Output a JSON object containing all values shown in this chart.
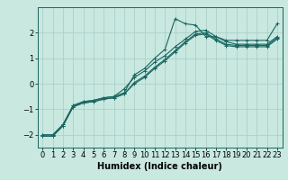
{
  "title": "",
  "xlabel": "Humidex (Indice chaleur)",
  "ylabel": "",
  "background_color": "#c8e8e0",
  "grid_color": "#a8ccc8",
  "line_color": "#1a6660",
  "x_values": [
    0,
    1,
    2,
    3,
    4,
    5,
    6,
    7,
    8,
    9,
    10,
    11,
    12,
    13,
    14,
    15,
    16,
    17,
    18,
    19,
    20,
    21,
    22,
    23
  ],
  "line1": [
    -2.0,
    -2.0,
    -1.6,
    -0.85,
    -0.7,
    -0.65,
    -0.55,
    -0.5,
    -0.35,
    0.35,
    0.6,
    1.0,
    1.35,
    2.55,
    2.35,
    2.3,
    1.85,
    1.85,
    1.7,
    1.7,
    1.7,
    1.7,
    1.7,
    2.35
  ],
  "line2": [
    -2.0,
    -2.0,
    -1.6,
    -0.85,
    -0.7,
    -0.65,
    -0.55,
    -0.5,
    -0.2,
    0.25,
    0.5,
    0.85,
    1.1,
    1.45,
    1.75,
    2.05,
    2.1,
    1.85,
    1.65,
    1.55,
    1.55,
    1.55,
    1.55,
    1.85
  ],
  "line3": [
    -2.05,
    -2.05,
    -1.65,
    -0.9,
    -0.75,
    -0.7,
    -0.6,
    -0.55,
    -0.4,
    0.05,
    0.3,
    0.65,
    0.95,
    1.3,
    1.65,
    1.95,
    2.0,
    1.75,
    1.55,
    1.5,
    1.5,
    1.5,
    1.5,
    1.8
  ],
  "line4": [
    -2.05,
    -2.05,
    -1.65,
    -0.9,
    -0.75,
    -0.7,
    -0.6,
    -0.55,
    -0.4,
    0.0,
    0.25,
    0.6,
    0.9,
    1.25,
    1.6,
    1.9,
    1.95,
    1.7,
    1.5,
    1.45,
    1.45,
    1.45,
    1.45,
    1.75
  ],
  "ylim": [
    -2.5,
    3.0
  ],
  "xlim": [
    -0.5,
    23.5
  ],
  "yticks": [
    -2,
    -1,
    0,
    1,
    2
  ],
  "xtick_labels": [
    "0",
    "1",
    "2",
    "3",
    "4",
    "5",
    "6",
    "7",
    "8",
    "9",
    "10",
    "11",
    "12",
    "13",
    "14",
    "15",
    "16",
    "17",
    "18",
    "19",
    "20",
    "21",
    "22",
    "23"
  ],
  "marker": "+",
  "markersize": 3,
  "linewidth": 0.8,
  "xlabel_fontsize": 7,
  "tick_fontsize": 6
}
